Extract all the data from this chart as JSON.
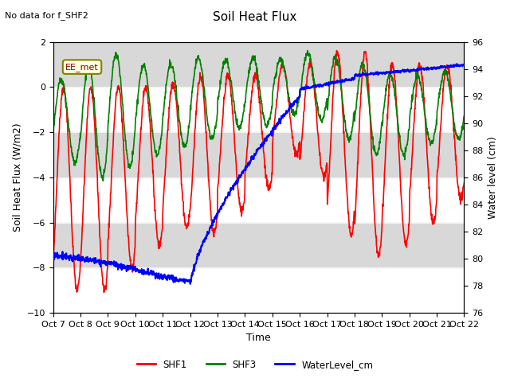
{
  "title": "Soil Heat Flux",
  "subtitle": "No data for f_SHF2",
  "xlabel": "Time",
  "ylabel_left": "Soil Heat Flux (W/m2)",
  "ylabel_right": "Water level (cm)",
  "ylim_left": [
    -10,
    2
  ],
  "ylim_right": [
    76,
    96
  ],
  "yticks_left": [
    2,
    0,
    -2,
    -4,
    -6,
    -8,
    -10
  ],
  "yticks_right": [
    96,
    94,
    92,
    90,
    88,
    86,
    84,
    82,
    80,
    78,
    76
  ],
  "xtick_labels": [
    "Oct 7",
    "Oct 8",
    "Oct 9",
    "Oct 10",
    "Oct 11",
    "Oct 12",
    "Oct 13",
    "Oct 14",
    "Oct 15",
    "Oct 16",
    "Oct 17",
    "Oct 18",
    "Oct 19",
    "Oct 20",
    "Oct 21",
    "Oct 22"
  ],
  "annotation": "EE_met",
  "legend_labels": [
    "SHF1",
    "SHF3",
    "WaterLevel_cm"
  ],
  "legend_colors": [
    "red",
    "green",
    "blue"
  ],
  "background_color": "#ffffff",
  "band_color": "#d8d8d8"
}
